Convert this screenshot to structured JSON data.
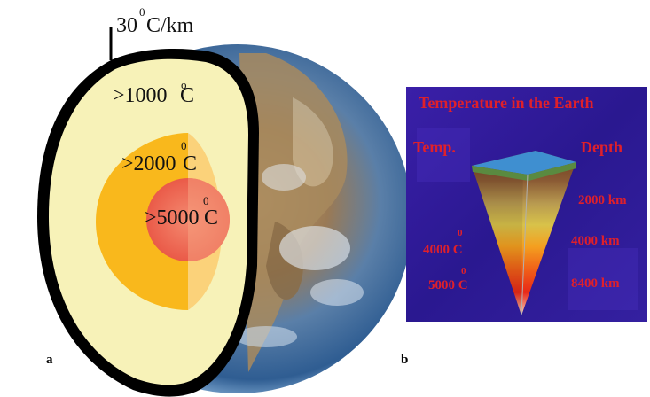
{
  "panel_a": {
    "letter": "a",
    "gradient_label": "30",
    "gradient_sup": "0",
    "gradient_unit": "C/km",
    "mantle_label": ">1000",
    "mantle_sup": "o",
    "mantle_unit": " C",
    "outer_core_label": ">2000",
    "outer_core_sup": "0",
    "outer_core_unit": " C",
    "inner_core_label": ">5000",
    "inner_core_sup": "0",
    "inner_core_unit": " C"
  },
  "panel_b": {
    "letter": "b",
    "title": "Temperature in the Earth",
    "temp_header": "Temp.",
    "depth_header": "Depth",
    "depth_1": "2000 km",
    "depth_2": "4000 km",
    "depth_3": "8400 km",
    "temp_1": "4000 C",
    "temp_1_sup": "0",
    "temp_2": "5000 C",
    "temp_2_sup": "0"
  },
  "colors": {
    "crust_outline": "#000000",
    "mantle": "#f7f2b8",
    "outer_core": "#f9b81c",
    "inner_core": "#f0705a",
    "panel_b_bg": "#2a1a9a",
    "panel_b_text": "#e0202a"
  }
}
